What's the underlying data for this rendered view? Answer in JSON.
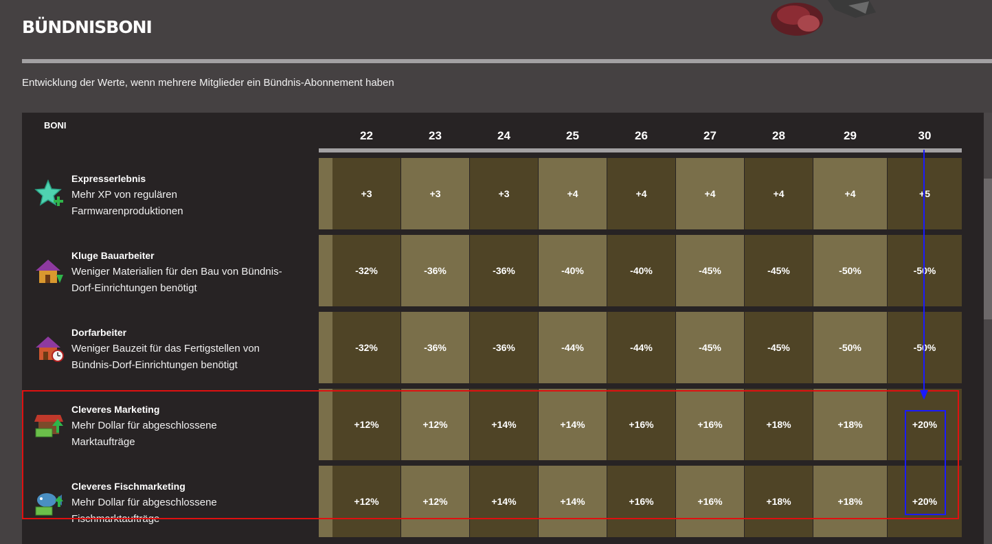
{
  "page": {
    "title": "BÜNDNISBONI",
    "subtitle": "Entwicklung der Werte, wenn mehrere Mitglieder ein Bündnis-Abonnement haben"
  },
  "table": {
    "label": "BONI",
    "columns": [
      "22",
      "23",
      "24",
      "25",
      "26",
      "27",
      "28",
      "29",
      "30"
    ],
    "rows": [
      {
        "name": "Expresserlebnis",
        "desc_lines": [
          "Mehr XP von regulären",
          "Farmwarenproduktionen"
        ],
        "icon": "green-star-plus-icon",
        "values": [
          "+3",
          "+3",
          "+3",
          "+4",
          "+4",
          "+4",
          "+4",
          "+4",
          "+5"
        ]
      },
      {
        "name": "Kluge Bauarbeiter",
        "desc_lines": [
          "Weniger Materialien für den Bau von Bündnis-",
          "Dorf-Einrichtungen benötigt"
        ],
        "icon": "house-down-arrow-icon",
        "values": [
          "-32%",
          "-36%",
          "-36%",
          "-40%",
          "-40%",
          "-45%",
          "-45%",
          "-50%",
          "-50%"
        ]
      },
      {
        "name": "Dorfarbeiter",
        "desc_lines": [
          "Weniger Bauzeit für das Fertigstellen von",
          "Bündnis-Dorf-Einrichtungen benötigt"
        ],
        "icon": "house-clock-icon",
        "values": [
          "-32%",
          "-36%",
          "-36%",
          "-44%",
          "-44%",
          "-45%",
          "-45%",
          "-50%",
          "-50%"
        ]
      },
      {
        "name": "Cleveres Marketing",
        "desc_lines": [
          "Mehr Dollar für abgeschlossene",
          "Marktaufträge"
        ],
        "icon": "market-stall-money-icon",
        "values": [
          "+12%",
          "+12%",
          "+14%",
          "+14%",
          "+16%",
          "+16%",
          "+18%",
          "+18%",
          "+20%"
        ]
      },
      {
        "name": "Cleveres Fischmarketing",
        "desc_lines": [
          "Mehr Dollar für abgeschlossene",
          "Fischmarktaufträge"
        ],
        "icon": "fish-money-icon",
        "values": [
          "+12%",
          "+12%",
          "+14%",
          "+14%",
          "+16%",
          "+16%",
          "+18%",
          "+18%",
          "+20%"
        ]
      }
    ]
  },
  "colors": {
    "cell_dark": "#4f4426",
    "cell_light": "#7a6f4a",
    "highlight_red": "#e01010",
    "highlight_blue": "#1a1aff"
  }
}
